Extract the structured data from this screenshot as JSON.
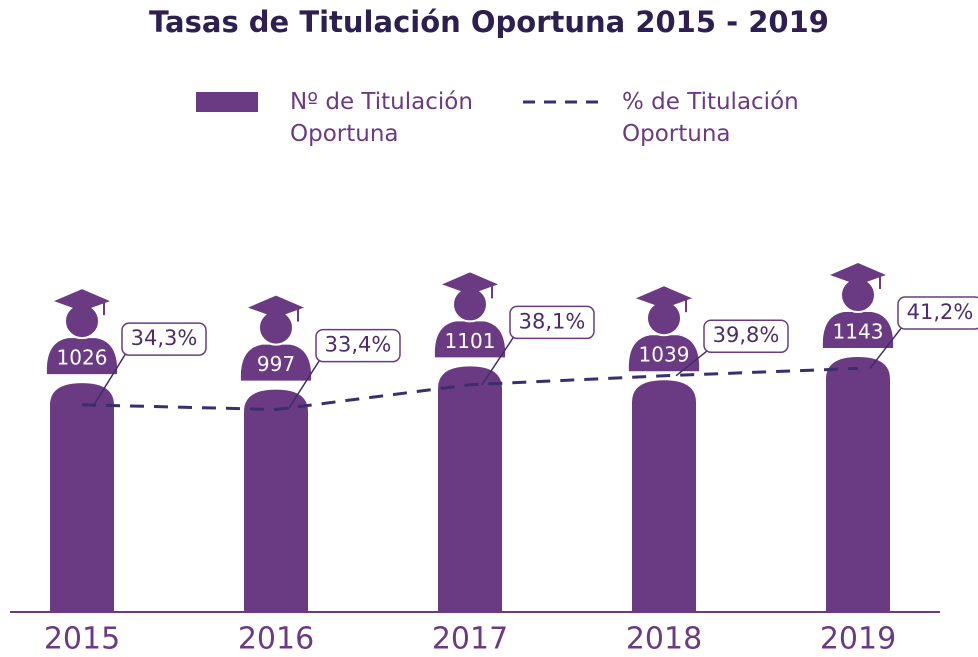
{
  "chart_data": {
    "type": "bar",
    "title": "Tasas de Titulación Oportuna 2015 - 2019",
    "categories": [
      "2015",
      "2016",
      "2017",
      "2018",
      "2019"
    ],
    "series": [
      {
        "name": "Nº de Titulación Oportuna",
        "type": "bar",
        "color": "#6a3b82",
        "values": [
          1026,
          997,
          1101,
          1039,
          1143
        ]
      },
      {
        "name": "% de Titulación Oportuna",
        "type": "line",
        "axis": "y2",
        "color": "#3b2e6e",
        "dashed": true,
        "values": [
          34.3,
          33.4,
          38.1,
          39.8,
          41.2
        ],
        "value_labels": [
          "34,3%",
          "33,4%",
          "38,1%",
          "39,8%",
          "41,2%"
        ]
      }
    ],
    "ylim": [
      0,
      1300
    ],
    "y2lim": [
      -5,
      50
    ],
    "grid": false
  }
}
